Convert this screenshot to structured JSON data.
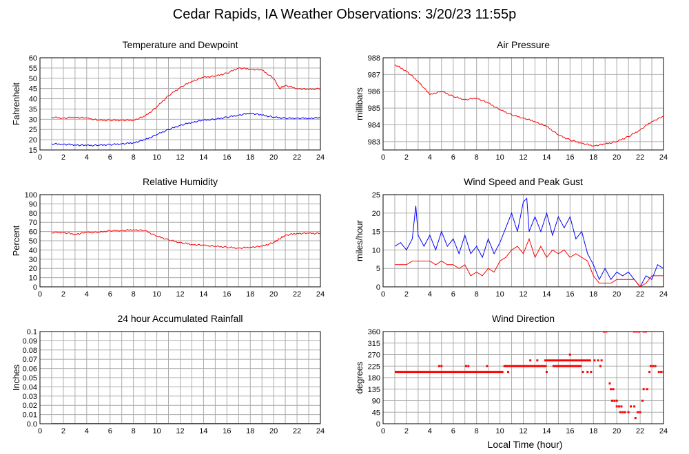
{
  "page": {
    "title": "Cedar Rapids, IA Weather Observations: 3/20/23 11:55p",
    "xlabel": "Local Time (hour)"
  },
  "colors": {
    "red": "#ff0000",
    "blue": "#0000ff",
    "grid": "#aaaaaa",
    "axis": "#000000"
  },
  "chart_data": [
    {
      "id": "temp",
      "type": "line",
      "title": "Temperature and Dewpoint",
      "ylabel": "Fahrenheit",
      "xlim": [
        0,
        24
      ],
      "ylim": [
        15,
        60
      ],
      "xticks": [
        2,
        4,
        6,
        8,
        10,
        12,
        14,
        16,
        18,
        20,
        22,
        24
      ],
      "yticks": [
        15,
        20,
        25,
        30,
        35,
        40,
        45,
        50,
        55,
        60
      ],
      "grid": true,
      "series": [
        {
          "color": "red",
          "x": [
            1,
            2,
            3,
            4,
            5,
            6,
            7,
            8,
            9,
            10,
            11,
            12,
            13,
            14,
            15,
            16,
            17,
            18,
            19,
            20,
            20.5,
            21,
            22,
            23,
            24
          ],
          "y": [
            31,
            30.5,
            31,
            30.5,
            29.5,
            29.5,
            29.5,
            29.5,
            31.5,
            36,
            41.5,
            45.5,
            48.5,
            50.5,
            51,
            52.5,
            55,
            54.5,
            54,
            50,
            45,
            46.5,
            45,
            44.5,
            45
          ]
        },
        {
          "color": "blue",
          "x": [
            1,
            2,
            3,
            4,
            5,
            6,
            7,
            8,
            9,
            10,
            11,
            12,
            13,
            14,
            15,
            16,
            17,
            18,
            19,
            20,
            21,
            22,
            23,
            24
          ],
          "y": [
            18,
            17.8,
            17.5,
            17.2,
            17.3,
            17.6,
            18,
            18.5,
            20,
            22.5,
            25,
            27,
            28.5,
            29.5,
            30,
            31,
            32,
            33,
            32,
            31,
            30.5,
            30.5,
            30.5,
            30.7
          ]
        }
      ]
    },
    {
      "id": "pressure",
      "type": "line",
      "title": "Air Pressure",
      "ylabel": "millibars",
      "xlim": [
        0,
        24
      ],
      "ylim": [
        982.5,
        988
      ],
      "xticks": [
        2,
        4,
        6,
        8,
        10,
        12,
        14,
        16,
        18,
        20,
        22,
        24
      ],
      "yticks": [
        983,
        984,
        985,
        986,
        987,
        988
      ],
      "grid": true,
      "series": [
        {
          "color": "red",
          "x": [
            1,
            2,
            3,
            4,
            5,
            6,
            7,
            8,
            9,
            10,
            11,
            12,
            13,
            14,
            15,
            16,
            17,
            18,
            19,
            20,
            21,
            22,
            23,
            24
          ],
          "y": [
            987.6,
            987.2,
            986.6,
            985.8,
            986.0,
            985.7,
            985.5,
            985.6,
            985.3,
            984.9,
            984.6,
            984.4,
            984.2,
            983.9,
            983.4,
            983.1,
            982.9,
            982.75,
            982.85,
            983.0,
            983.3,
            983.7,
            984.2,
            984.5
          ]
        }
      ]
    },
    {
      "id": "humidity",
      "type": "line",
      "title": "Relative Humidity",
      "ylabel": "Percent",
      "xlim": [
        0,
        24
      ],
      "ylim": [
        0,
        100
      ],
      "xticks": [
        2,
        4,
        6,
        8,
        10,
        12,
        14,
        16,
        18,
        20,
        22,
        24
      ],
      "yticks": [
        0,
        10,
        20,
        30,
        40,
        50,
        60,
        70,
        80,
        90,
        100
      ],
      "grid": true,
      "series": [
        {
          "color": "red",
          "x": [
            1,
            2,
            3,
            4,
            5,
            6,
            7,
            8,
            9,
            10,
            11,
            12,
            13,
            14,
            15,
            16,
            17,
            18,
            19,
            20,
            20.5,
            21,
            22,
            23,
            24
          ],
          "y": [
            59,
            59,
            57,
            59,
            59,
            61,
            61,
            62,
            61,
            55,
            51,
            48,
            46,
            45,
            44,
            43,
            42,
            43,
            44,
            48,
            52,
            56,
            58,
            58,
            58
          ]
        }
      ]
    },
    {
      "id": "wind",
      "type": "line",
      "title": "Wind Speed and Peak Gust",
      "ylabel": "miles/hour",
      "xlim": [
        0,
        24
      ],
      "ylim": [
        0,
        25
      ],
      "xticks": [
        2,
        4,
        6,
        8,
        10,
        12,
        14,
        16,
        18,
        20,
        22,
        24
      ],
      "yticks": [
        0,
        5,
        10,
        15,
        20,
        25
      ],
      "grid": true,
      "series": [
        {
          "color": "blue",
          "x": [
            1,
            1.5,
            2,
            2.5,
            2.8,
            3,
            3.5,
            4,
            4.5,
            5,
            5.5,
            6,
            6.5,
            7,
            7.5,
            8,
            8.5,
            9,
            9.5,
            10,
            10.5,
            11,
            11.5,
            12,
            12.3,
            12.5,
            13,
            13.5,
            14,
            14.5,
            15,
            15.5,
            16,
            16.5,
            17,
            17.5,
            18,
            18.5,
            19,
            19.5,
            20,
            20.5,
            21,
            21.5,
            22,
            22.5,
            23,
            23.5,
            24
          ],
          "y": [
            11,
            12,
            10,
            13,
            22,
            14,
            11,
            14,
            10,
            15,
            11,
            13,
            9,
            14,
            9,
            11,
            8,
            13,
            9,
            12,
            16,
            20,
            15,
            23,
            24,
            15,
            19,
            15,
            20,
            14,
            19,
            16,
            19,
            13,
            15,
            9,
            6,
            2,
            5,
            2,
            4,
            3,
            4,
            2,
            0,
            3,
            2,
            6,
            5
          ]
        },
        {
          "color": "red",
          "x": [
            1,
            1.5,
            2,
            2.5,
            3,
            3.5,
            4,
            4.5,
            5,
            5.5,
            6,
            6.5,
            7,
            7.5,
            8,
            8.5,
            9,
            9.5,
            10,
            10.5,
            11,
            11.5,
            12,
            12.5,
            13,
            13.5,
            14,
            14.5,
            15,
            15.5,
            16,
            16.5,
            17,
            17.5,
            18,
            18.5,
            19,
            19.5,
            20,
            20.5,
            21,
            21.5,
            22,
            22.5,
            23,
            23.5,
            24
          ],
          "y": [
            6,
            6,
            6,
            7,
            7,
            7,
            7,
            6,
            7,
            6,
            6,
            5,
            6,
            3,
            4,
            3,
            5,
            4,
            7,
            8,
            10,
            11,
            9,
            13,
            8,
            11,
            8,
            10,
            9,
            10,
            8,
            9,
            8,
            7,
            3,
            1,
            1,
            1,
            2,
            2,
            2,
            2,
            0,
            1,
            3,
            3,
            3
          ]
        }
      ]
    },
    {
      "id": "rain",
      "type": "line",
      "title": "24 hour Accumulated Rainfall",
      "ylabel": "Inches",
      "xlim": [
        0,
        24
      ],
      "ylim": [
        0,
        0.1
      ],
      "xticks": [
        2,
        4,
        6,
        8,
        10,
        12,
        14,
        16,
        18,
        20,
        22,
        24
      ],
      "yticks": [
        0.0,
        0.01,
        0.02,
        0.03,
        0.04,
        0.05,
        0.06,
        0.07,
        0.08,
        0.09,
        0.1
      ],
      "ytick_labels": [
        "0.0",
        "0.01",
        "0.02",
        "0.03",
        "0.04",
        "0.05",
        "0.06",
        "0.07",
        "0.08",
        "0.09",
        "0.1"
      ],
      "grid": true,
      "series": [
        {
          "color": "red",
          "x": [
            1,
            24
          ],
          "y": [
            0,
            0
          ]
        }
      ]
    },
    {
      "id": "direction",
      "type": "scatter",
      "title": "Wind Direction",
      "ylabel": "degrees",
      "xlim": [
        0,
        24
      ],
      "ylim": [
        0,
        360
      ],
      "xticks": [
        2,
        4,
        6,
        8,
        10,
        12,
        14,
        16,
        18,
        20,
        22,
        24
      ],
      "yticks": [
        0,
        45,
        90,
        135,
        180,
        225,
        270,
        315,
        360
      ],
      "grid": true,
      "series": [
        {
          "color": "red",
          "segments": [
            {
              "x0": 1.0,
              "x1": 10.3,
              "y": 202.5
            },
            {
              "x0": 10.3,
              "x1": 12.5,
              "y": 225
            },
            {
              "x0": 12.5,
              "x1": 14.0,
              "y": 225
            },
            {
              "x0": 13.8,
              "x1": 17.8,
              "y": 247.5
            },
            {
              "x0": 14.5,
              "x1": 17.0,
              "y": 225
            }
          ],
          "points": [
            [
              4.8,
              225
            ],
            [
              5.0,
              225
            ],
            [
              7.1,
              225
            ],
            [
              7.3,
              225
            ],
            [
              8.9,
              225
            ],
            [
              10.5,
              225
            ],
            [
              10.7,
              202.5
            ],
            [
              12.6,
              247.5
            ],
            [
              13.2,
              247.5
            ],
            [
              14.0,
              202.5
            ],
            [
              16.0,
              270
            ],
            [
              17.1,
              202.5
            ],
            [
              17.5,
              202.5
            ],
            [
              17.8,
              202.5
            ],
            [
              18.1,
              247.5
            ],
            [
              18.4,
              247.5
            ],
            [
              18.7,
              247.5
            ],
            [
              18.9,
              360
            ],
            [
              19.1,
              360
            ],
            [
              18.6,
              225
            ],
            [
              19.4,
              157.5
            ],
            [
              19.5,
              135
            ],
            [
              19.7,
              135
            ],
            [
              19.6,
              90
            ],
            [
              19.8,
              90
            ],
            [
              20.0,
              90
            ],
            [
              20.0,
              67.5
            ],
            [
              20.2,
              67.5
            ],
            [
              20.4,
              67.5
            ],
            [
              20.3,
              45
            ],
            [
              20.5,
              45
            ],
            [
              20.7,
              45
            ],
            [
              21.0,
              45
            ],
            [
              21.2,
              67.5
            ],
            [
              21.5,
              67.5
            ],
            [
              21.6,
              22.5
            ],
            [
              21.8,
              45
            ],
            [
              22.0,
              45
            ],
            [
              21.5,
              360
            ],
            [
              21.7,
              360
            ],
            [
              21.9,
              360
            ],
            [
              22.3,
              360
            ],
            [
              22.5,
              360
            ],
            [
              22.2,
              90
            ],
            [
              22.3,
              135
            ],
            [
              22.6,
              135
            ],
            [
              22.8,
              202.5
            ],
            [
              22.9,
              225
            ],
            [
              23.1,
              225
            ],
            [
              23.3,
              225
            ],
            [
              23.6,
              202.5
            ],
            [
              23.8,
              202.5
            ],
            [
              24.0,
              202.5
            ]
          ]
        }
      ]
    }
  ]
}
